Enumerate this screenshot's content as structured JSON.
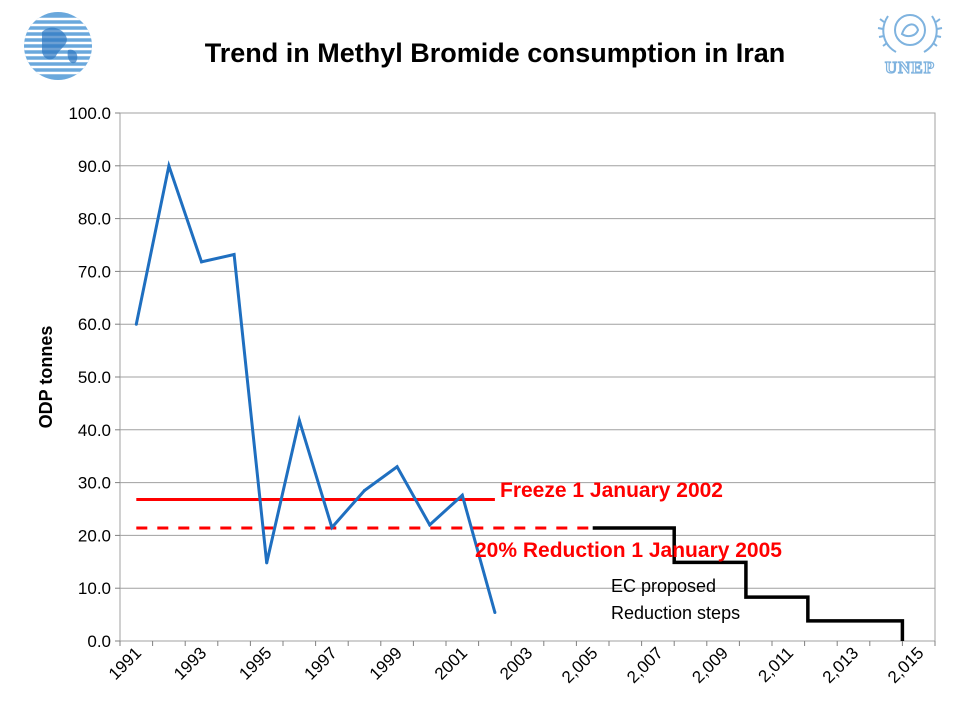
{
  "logos": {
    "right_text": "UNEP"
  },
  "chart_data": {
    "type": "line",
    "title": "Trend in Methyl Bromide consumption in Iran",
    "ylabel": "ODP tonnes",
    "xlabel": "",
    "ylim": [
      0,
      100
    ],
    "yticks": [
      "0.0",
      "10.0",
      "20.0",
      "30.0",
      "40.0",
      "50.0",
      "60.0",
      "70.0",
      "80.0",
      "90.0",
      "100.0"
    ],
    "xticks": [
      "1991",
      "1993",
      "1995",
      "1997",
      "1999",
      "2001",
      "2003",
      "2,005",
      "2,007",
      "2,009",
      "2,011",
      "2,013",
      "2,015"
    ],
    "grid": "horizontal",
    "series": [
      {
        "x": [
          1991,
          1992,
          1993,
          1994,
          1995,
          1996,
          1997,
          1998,
          1999,
          2000,
          2001,
          2002
        ],
        "values": [
          60.0,
          90.0,
          71.8,
          73.2,
          14.8,
          41.8,
          21.5,
          28.5,
          33.0,
          22.0,
          27.6,
          5.4
        ],
        "color": "#1f6fc0"
      }
    ],
    "reference_lines": [
      {
        "label": "Freeze 1 January 2002",
        "value": 26.8,
        "x_start": 1991,
        "x_end": 2002,
        "style": "solid",
        "color": "#ff0000"
      },
      {
        "label": "20% Reduction 1 January 2005",
        "value": 21.4,
        "x_start": 1991,
        "x_end": 2005,
        "style": "dashed",
        "color": "#ff0000"
      }
    ],
    "steps": {
      "label_lines": [
        "EC proposed",
        "Reduction steps"
      ],
      "color": "#000000",
      "points": [
        {
          "x": 2005,
          "y": 21.4
        },
        {
          "x": 2007.5,
          "y": 21.4
        },
        {
          "x": 2007.5,
          "y": 14.9
        },
        {
          "x": 2009.7,
          "y": 14.9
        },
        {
          "x": 2009.7,
          "y": 8.3
        },
        {
          "x": 2011.6,
          "y": 8.3
        },
        {
          "x": 2011.6,
          "y": 3.8
        },
        {
          "x": 2014.5,
          "y": 3.8
        },
        {
          "x": 2014.5,
          "y": 0
        }
      ]
    }
  }
}
